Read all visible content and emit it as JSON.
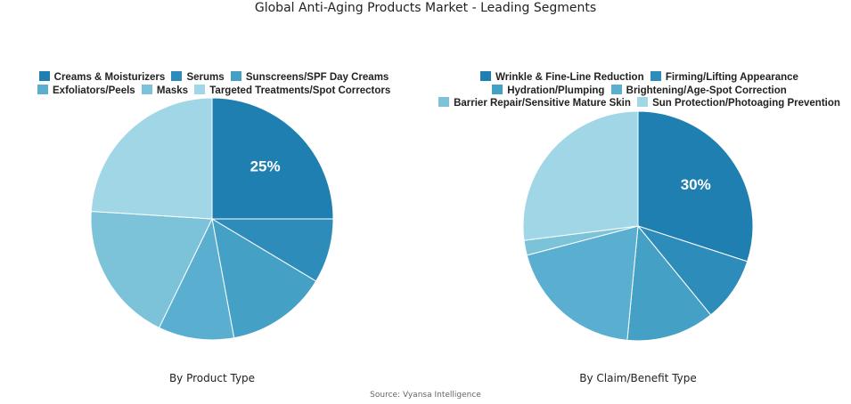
{
  "title": "Global Anti-Aging Products Market - Leading Segments",
  "source": "Source: Vyansa Intelligence",
  "colors": [
    "#1f7fb0",
    "#2e8cba",
    "#45a0c6",
    "#5aafd0",
    "#7cc3da",
    "#a1d6e6"
  ],
  "chart_data": [
    {
      "type": "pie",
      "title": "By Product Type",
      "categories": [
        "Creams & Moisturizers",
        "Serums",
        "Sunscreens/SPF Day Creams",
        "Exfoliators/Peels",
        "Masks",
        "Targeted Treatments/Spot Correctors"
      ],
      "values": [
        25,
        8.6,
        13.5,
        10.1,
        18.8,
        24
      ],
      "labels_shown": [
        "25%",
        "",
        "",
        "",
        "",
        ""
      ],
      "legend_position": "top"
    },
    {
      "type": "pie",
      "title": "By Claim/Benefit Type",
      "categories": [
        "Wrinkle & Fine-Line Reduction",
        "Firming/Lifting Appearance",
        "Hydration/Plumping",
        "Brightening/Age-Spot Correction",
        "Barrier Repair/Sensitive Mature Skin",
        "Sun Protection/Photoaging Prevention"
      ],
      "values": [
        30,
        9.1,
        12.4,
        19.4,
        2.1,
        27
      ],
      "labels_shown": [
        "30%",
        "",
        "",
        "",
        "",
        ""
      ],
      "legend_position": "top"
    }
  ],
  "left": {
    "subtitle": "By Product Type",
    "big_label": "25%",
    "legend": [
      "Creams & Moisturizers",
      "Serums",
      "Sunscreens/SPF Day Creams",
      "Exfoliators/Peels",
      "Masks",
      "Targeted Treatments/Spot Correctors"
    ]
  },
  "right": {
    "subtitle": "By Claim/Benefit Type",
    "big_label": "30%",
    "legend": [
      "Wrinkle & Fine-Line Reduction",
      "Firming/Lifting Appearance",
      "Hydration/Plumping",
      "Brightening/Age-Spot Correction",
      "Barrier Repair/Sensitive Mature Skin",
      "Sun Protection/Photoaging Prevention"
    ]
  }
}
